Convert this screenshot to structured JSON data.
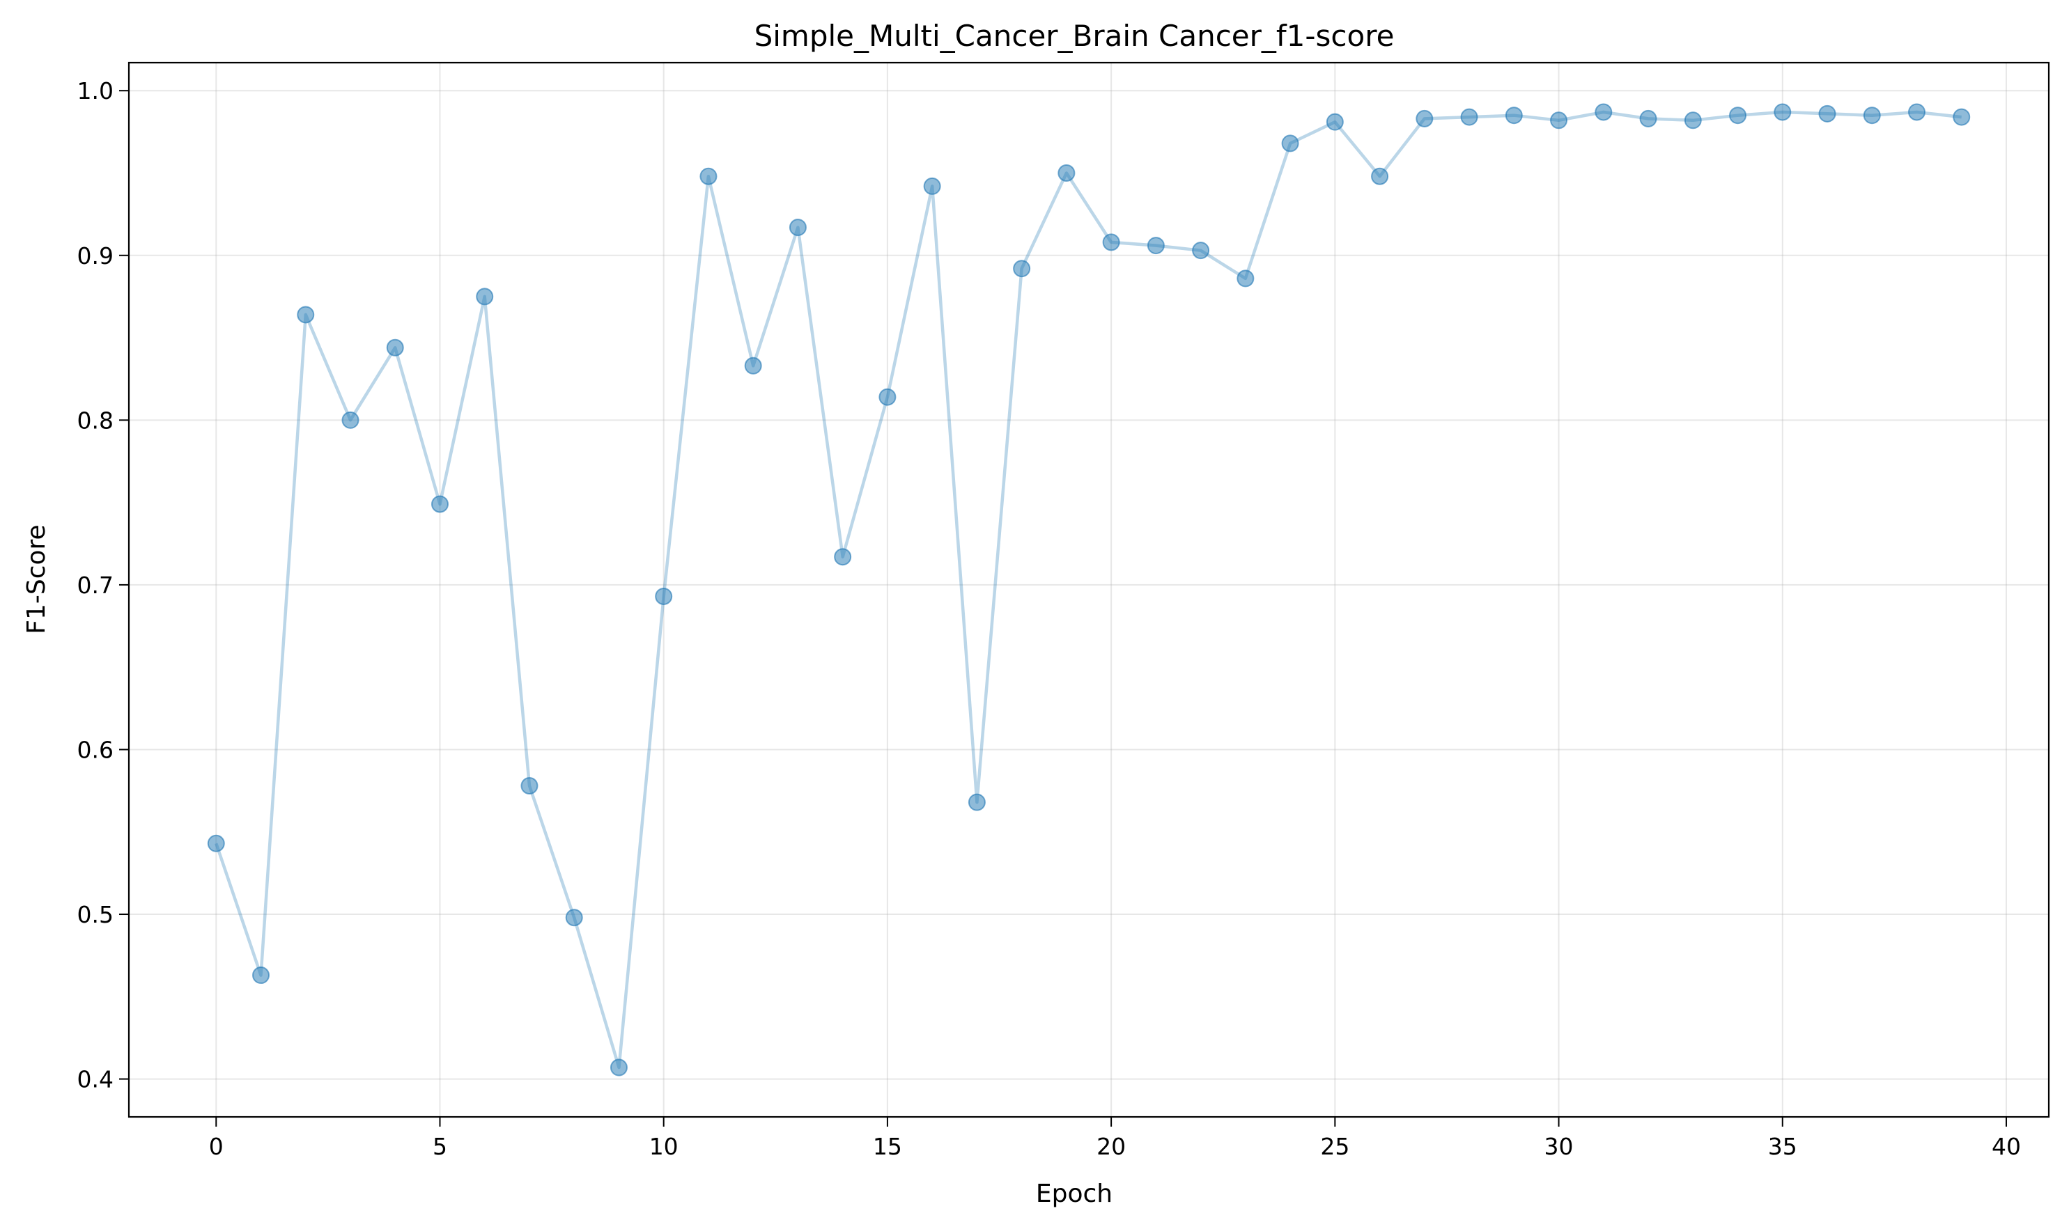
{
  "chart_data": {
    "type": "line",
    "title": "Simple_Multi_Cancer_Brain Cancer_f1-score",
    "xlabel": "Epoch",
    "ylabel": "F1-Score",
    "xlim": [
      -1.95,
      40.95
    ],
    "ylim": [
      0.377,
      1.017
    ],
    "xticks": [
      0,
      5,
      10,
      15,
      20,
      25,
      30,
      35,
      40
    ],
    "yticks": [
      0.4,
      0.5,
      0.6,
      0.7,
      0.8,
      0.9,
      1.0
    ],
    "xtick_labels": [
      "0",
      "5",
      "10",
      "15",
      "20",
      "25",
      "30",
      "35",
      "40"
    ],
    "ytick_labels": [
      "0.4",
      "0.5",
      "0.6",
      "0.7",
      "0.8",
      "0.9",
      "1.0"
    ],
    "grid": true,
    "series": [
      {
        "color": "#1f77b4",
        "marker": "circle",
        "x": [
          0,
          1,
          2,
          3,
          4,
          5,
          6,
          7,
          8,
          9,
          10,
          11,
          12,
          13,
          14,
          15,
          16,
          17,
          18,
          19,
          20,
          21,
          22,
          23,
          24,
          25,
          26,
          27,
          28,
          29,
          30,
          31,
          32,
          33,
          34,
          35,
          36,
          37,
          38,
          39
        ],
        "y": [
          0.543,
          0.463,
          0.864,
          0.8,
          0.844,
          0.749,
          0.875,
          0.578,
          0.498,
          0.407,
          0.693,
          0.948,
          0.833,
          0.917,
          0.717,
          0.814,
          0.942,
          0.568,
          0.892,
          0.95,
          0.908,
          0.906,
          0.903,
          0.886,
          0.968,
          0.981,
          0.948,
          0.983,
          0.984,
          0.985,
          0.982,
          0.987,
          0.983,
          0.982,
          0.985,
          0.987,
          0.986,
          0.985,
          0.987,
          0.984
        ]
      }
    ]
  }
}
